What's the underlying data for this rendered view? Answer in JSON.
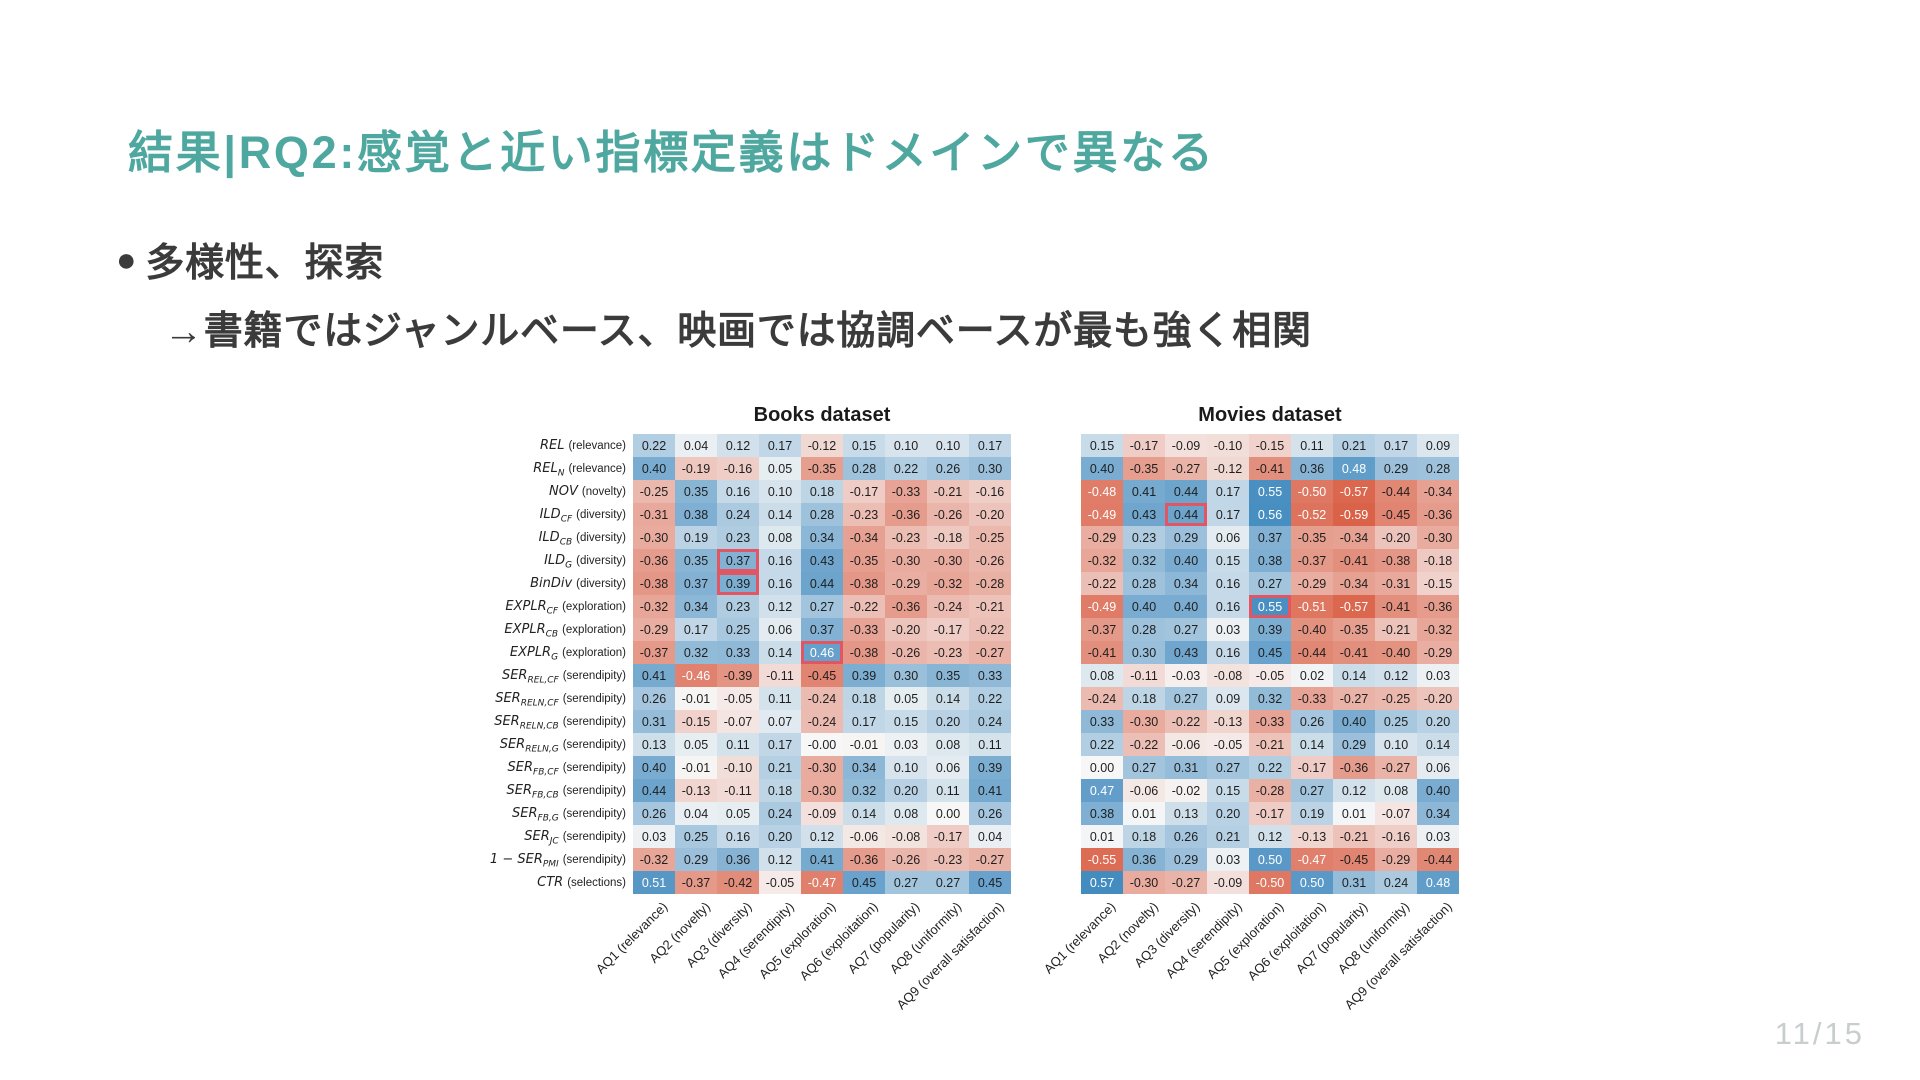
{
  "slide": {
    "title": "結果|RQ2:感覚と近い指標定義はドメインで異なる",
    "title_color": "#4fa8a0",
    "bullet_icon": "●",
    "bullet_line1": "多様性、探索",
    "bullet_line2": "→書籍ではジャンルベース、映画では協調ベースが最も強く相関",
    "page_number": "11/15"
  },
  "heatmap_style": {
    "negative_color": "#d95f45",
    "zero_color": "#f7f7f7",
    "positive_color": "#3a86bd",
    "abs_max": 0.6,
    "highlight_border_color": "#e25563",
    "white_text_threshold": 0.46
  },
  "chart_data": [
    {
      "type": "heatmap",
      "title": "Books dataset",
      "show_row_labels": true,
      "columns": [
        "AQ1 (relevance)",
        "AQ2 (novelty)",
        "AQ3 (diversity)",
        "AQ4 (serendipity)",
        "AQ5 (exploration)",
        "AQ6 (exploitation)",
        "AQ7 (popularity)",
        "AQ8 (uniformity)",
        "AQ9 (overall satisfaction)"
      ],
      "rows": [
        {
          "main": "REL",
          "sub": "",
          "paren": "(relevance)"
        },
        {
          "main": "REL",
          "sub": "N",
          "paren": "(relevance)"
        },
        {
          "main": "NOV",
          "sub": "",
          "paren": "(novelty)"
        },
        {
          "main": "ILD",
          "sub": "CF",
          "paren": "(diversity)"
        },
        {
          "main": "ILD",
          "sub": "CB",
          "paren": "(diversity)"
        },
        {
          "main": "ILD",
          "sub": "G",
          "paren": "(diversity)"
        },
        {
          "main": "BinDiv",
          "sub": "",
          "paren": "(diversity)"
        },
        {
          "main": "EXPLR",
          "sub": "CF",
          "paren": "(exploration)"
        },
        {
          "main": "EXPLR",
          "sub": "CB",
          "paren": "(exploration)"
        },
        {
          "main": "EXPLR",
          "sub": "G",
          "paren": "(exploration)"
        },
        {
          "main": "SER",
          "sub": "REL,CF",
          "paren": "(serendipity)"
        },
        {
          "main": "SER",
          "sub": "RELN,CF",
          "paren": "(serendipity)"
        },
        {
          "main": "SER",
          "sub": "RELN,CB",
          "paren": "(serendipity)"
        },
        {
          "main": "SER",
          "sub": "RELN,G",
          "paren": "(serendipity)"
        },
        {
          "main": "SER",
          "sub": "FB,CF",
          "paren": "(serendipity)"
        },
        {
          "main": "SER",
          "sub": "FB,CB",
          "paren": "(serendipity)"
        },
        {
          "main": "SER",
          "sub": "FB,G",
          "paren": "(serendipity)"
        },
        {
          "main": "SER",
          "sub": "JC",
          "paren": "(serendipity)"
        },
        {
          "main": "1 − SER",
          "sub": "PMI",
          "paren": "(serendipity)"
        },
        {
          "main": "CTR",
          "sub": "",
          "paren": "(selections)"
        }
      ],
      "values": [
        [
          "0.22",
          "0.04",
          "0.12",
          "0.17",
          "-0.12",
          "0.15",
          "0.10",
          "0.10",
          "0.17"
        ],
        [
          "0.40",
          "-0.19",
          "-0.16",
          "0.05",
          "-0.35",
          "0.28",
          "0.22",
          "0.26",
          "0.30"
        ],
        [
          "-0.25",
          "0.35",
          "0.16",
          "0.10",
          "0.18",
          "-0.17",
          "-0.33",
          "-0.21",
          "-0.16"
        ],
        [
          "-0.31",
          "0.38",
          "0.24",
          "0.14",
          "0.28",
          "-0.23",
          "-0.36",
          "-0.26",
          "-0.20"
        ],
        [
          "-0.30",
          "0.19",
          "0.23",
          "0.08",
          "0.34",
          "-0.34",
          "-0.23",
          "-0.18",
          "-0.25"
        ],
        [
          "-0.36",
          "0.35",
          "0.37",
          "0.16",
          "0.43",
          "-0.35",
          "-0.30",
          "-0.30",
          "-0.26"
        ],
        [
          "-0.38",
          "0.37",
          "0.39",
          "0.16",
          "0.44",
          "-0.38",
          "-0.29",
          "-0.32",
          "-0.28"
        ],
        [
          "-0.32",
          "0.34",
          "0.23",
          "0.12",
          "0.27",
          "-0.22",
          "-0.36",
          "-0.24",
          "-0.21"
        ],
        [
          "-0.29",
          "0.17",
          "0.25",
          "0.06",
          "0.37",
          "-0.33",
          "-0.20",
          "-0.17",
          "-0.22"
        ],
        [
          "-0.37",
          "0.32",
          "0.33",
          "0.14",
          "0.46",
          "-0.38",
          "-0.26",
          "-0.23",
          "-0.27"
        ],
        [
          "0.41",
          "-0.46",
          "-0.39",
          "-0.11",
          "-0.45",
          "0.39",
          "0.30",
          "0.35",
          "0.33"
        ],
        [
          "0.26",
          "-0.01",
          "-0.05",
          "0.11",
          "-0.24",
          "0.18",
          "0.05",
          "0.14",
          "0.22"
        ],
        [
          "0.31",
          "-0.15",
          "-0.07",
          "0.07",
          "-0.24",
          "0.17",
          "0.15",
          "0.20",
          "0.24"
        ],
        [
          "0.13",
          "0.05",
          "0.11",
          "0.17",
          "-0.00",
          "-0.01",
          "0.03",
          "0.08",
          "0.11"
        ],
        [
          "0.40",
          "-0.01",
          "-0.10",
          "0.21",
          "-0.30",
          "0.34",
          "0.10",
          "0.06",
          "0.39"
        ],
        [
          "0.44",
          "-0.13",
          "-0.11",
          "0.18",
          "-0.30",
          "0.32",
          "0.20",
          "0.11",
          "0.41"
        ],
        [
          "0.26",
          "0.04",
          "0.05",
          "0.24",
          "-0.09",
          "0.14",
          "0.08",
          "0.00",
          "0.26"
        ],
        [
          "0.03",
          "0.25",
          "0.16",
          "0.20",
          "0.12",
          "-0.06",
          "-0.08",
          "-0.17",
          "0.04"
        ],
        [
          "-0.32",
          "0.29",
          "0.36",
          "0.12",
          "0.41",
          "-0.36",
          "-0.26",
          "-0.23",
          "-0.27"
        ],
        [
          "0.51",
          "-0.37",
          "-0.42",
          "-0.05",
          "-0.47",
          "0.45",
          "0.27",
          "0.27",
          "0.45"
        ]
      ],
      "highlights": [
        [
          5,
          2
        ],
        [
          6,
          2
        ],
        [
          9,
          4
        ]
      ]
    },
    {
      "type": "heatmap",
      "title": "Movies dataset",
      "show_row_labels": false,
      "columns": [
        "AQ1 (relevance)",
        "AQ2 (novelty)",
        "AQ3 (diversity)",
        "AQ4 (serendipity)",
        "AQ5 (exploration)",
        "AQ6 (exploitation)",
        "AQ7 (popularity)",
        "AQ8 (uniformity)",
        "AQ9 (overall satisfaction)"
      ],
      "values": [
        [
          "0.15",
          "-0.17",
          "-0.09",
          "-0.10",
          "-0.15",
          "0.11",
          "0.21",
          "0.17",
          "0.09"
        ],
        [
          "0.40",
          "-0.35",
          "-0.27",
          "-0.12",
          "-0.41",
          "0.36",
          "0.48",
          "0.29",
          "0.28"
        ],
        [
          "-0.48",
          "0.41",
          "0.44",
          "0.17",
          "0.55",
          "-0.50",
          "-0.57",
          "-0.44",
          "-0.34"
        ],
        [
          "-0.49",
          "0.43",
          "0.44",
          "0.17",
          "0.56",
          "-0.52",
          "-0.59",
          "-0.45",
          "-0.36"
        ],
        [
          "-0.29",
          "0.23",
          "0.29",
          "0.06",
          "0.37",
          "-0.35",
          "-0.34",
          "-0.20",
          "-0.30"
        ],
        [
          "-0.32",
          "0.32",
          "0.40",
          "0.15",
          "0.38",
          "-0.37",
          "-0.41",
          "-0.38",
          "-0.18"
        ],
        [
          "-0.22",
          "0.28",
          "0.34",
          "0.16",
          "0.27",
          "-0.29",
          "-0.34",
          "-0.31",
          "-0.15"
        ],
        [
          "-0.49",
          "0.40",
          "0.40",
          "0.16",
          "0.55",
          "-0.51",
          "-0.57",
          "-0.41",
          "-0.36"
        ],
        [
          "-0.37",
          "0.28",
          "0.27",
          "0.03",
          "0.39",
          "-0.40",
          "-0.35",
          "-0.21",
          "-0.32"
        ],
        [
          "-0.41",
          "0.30",
          "0.43",
          "0.16",
          "0.45",
          "-0.44",
          "-0.41",
          "-0.40",
          "-0.29"
        ],
        [
          "0.08",
          "-0.11",
          "-0.03",
          "-0.08",
          "-0.05",
          "0.02",
          "0.14",
          "0.12",
          "0.03"
        ],
        [
          "-0.24",
          "0.18",
          "0.27",
          "0.09",
          "0.32",
          "-0.33",
          "-0.27",
          "-0.25",
          "-0.20"
        ],
        [
          "0.33",
          "-0.30",
          "-0.22",
          "-0.13",
          "-0.33",
          "0.26",
          "0.40",
          "0.25",
          "0.20"
        ],
        [
          "0.22",
          "-0.22",
          "-0.06",
          "-0.05",
          "-0.21",
          "0.14",
          "0.29",
          "0.10",
          "0.14"
        ],
        [
          "0.00",
          "0.27",
          "0.31",
          "0.27",
          "0.22",
          "-0.17",
          "-0.36",
          "-0.27",
          "0.06"
        ],
        [
          "0.47",
          "-0.06",
          "-0.02",
          "0.15",
          "-0.28",
          "0.27",
          "0.12",
          "0.08",
          "0.40"
        ],
        [
          "0.38",
          "0.01",
          "0.13",
          "0.20",
          "-0.17",
          "0.19",
          "0.01",
          "-0.07",
          "0.34"
        ],
        [
          "0.01",
          "0.18",
          "0.26",
          "0.21",
          "0.12",
          "-0.13",
          "-0.21",
          "-0.16",
          "0.03"
        ],
        [
          "-0.55",
          "0.36",
          "0.29",
          "0.03",
          "0.50",
          "-0.47",
          "-0.45",
          "-0.29",
          "-0.44"
        ],
        [
          "0.57",
          "-0.30",
          "-0.27",
          "-0.09",
          "-0.50",
          "0.50",
          "0.31",
          "0.24",
          "0.48"
        ]
      ],
      "highlights": [
        [
          3,
          2
        ],
        [
          7,
          4
        ]
      ]
    }
  ]
}
